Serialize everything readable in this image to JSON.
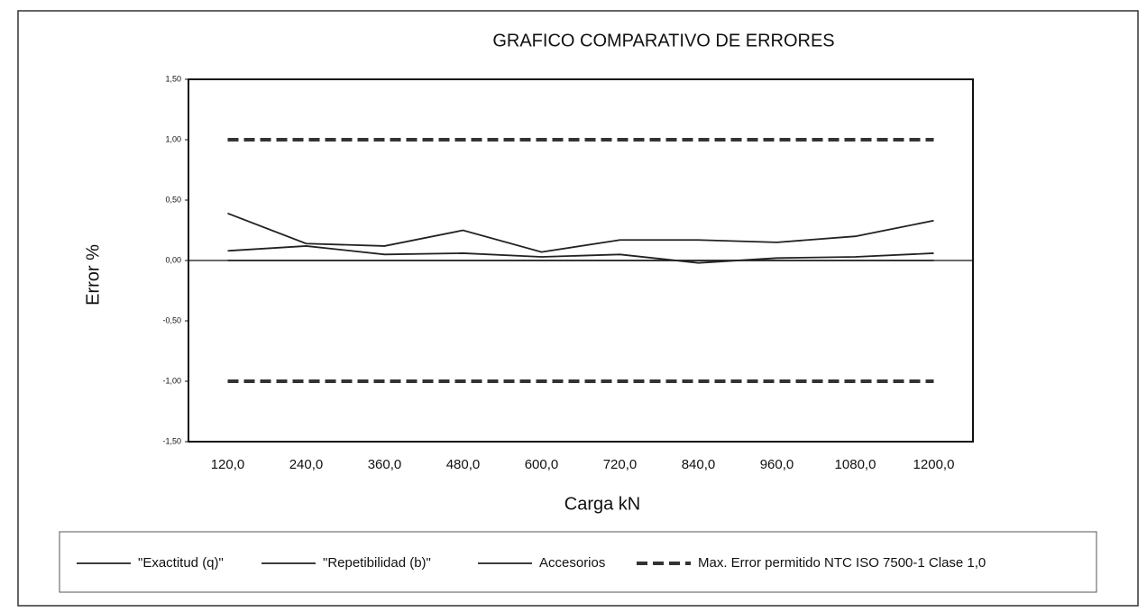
{
  "chart_data": {
    "type": "line",
    "title": "GRAFICO COMPARATIVO DE ERRORES",
    "x_label": "Carga kN",
    "y_label": "Error %",
    "categories": [
      "120,0",
      "240,0",
      "360,0",
      "480,0",
      "600,0",
      "720,0",
      "840,0",
      "960,0",
      "1080,0",
      "1200,0"
    ],
    "series": [
      {
        "name": "\"Exactitud (q)\"",
        "color": "#222222",
        "dash": false,
        "values": [
          0.39,
          0.14,
          0.12,
          0.25,
          0.07,
          0.17,
          0.17,
          0.15,
          0.2,
          0.33
        ]
      },
      {
        "name": "\"Repetibilidad (b)\"",
        "color": "#222222",
        "dash": false,
        "values": [
          0.08,
          0.12,
          0.05,
          0.06,
          0.03,
          0.05,
          -0.02,
          0.02,
          0.03,
          0.06
        ]
      },
      {
        "name": "Accesorios",
        "color": "#222222",
        "dash": false,
        "values": [
          0,
          0,
          0,
          0,
          0,
          0,
          0,
          0,
          0,
          0
        ]
      },
      {
        "name": "Max. Error permitido NTC ISO 7500-1  Clase  1,0",
        "color": "#333333",
        "dash": true,
        "values": [
          1,
          1,
          1,
          1,
          1,
          1,
          1,
          1,
          1,
          1
        ]
      },
      {
        "color": "#333333",
        "dash": true,
        "values": [
          -1,
          -1,
          -1,
          -1,
          -1,
          -1,
          -1,
          -1,
          -1,
          -1
        ]
      }
    ],
    "ylim": [
      -1.5,
      1.5
    ],
    "yticks": [
      {
        "value": -1.5,
        "label": "-1,50"
      },
      {
        "value": -1,
        "label": "-1,00"
      },
      {
        "value": -0.5,
        "label": "-0,50"
      },
      {
        "value": 0,
        "label": "0,00"
      },
      {
        "value": 0.5,
        "label": "0,50"
      },
      {
        "value": 1,
        "label": "1,00"
      },
      {
        "value": 1.5,
        "label": "1,50"
      }
    ],
    "grid": false,
    "legend": "bottom"
  }
}
